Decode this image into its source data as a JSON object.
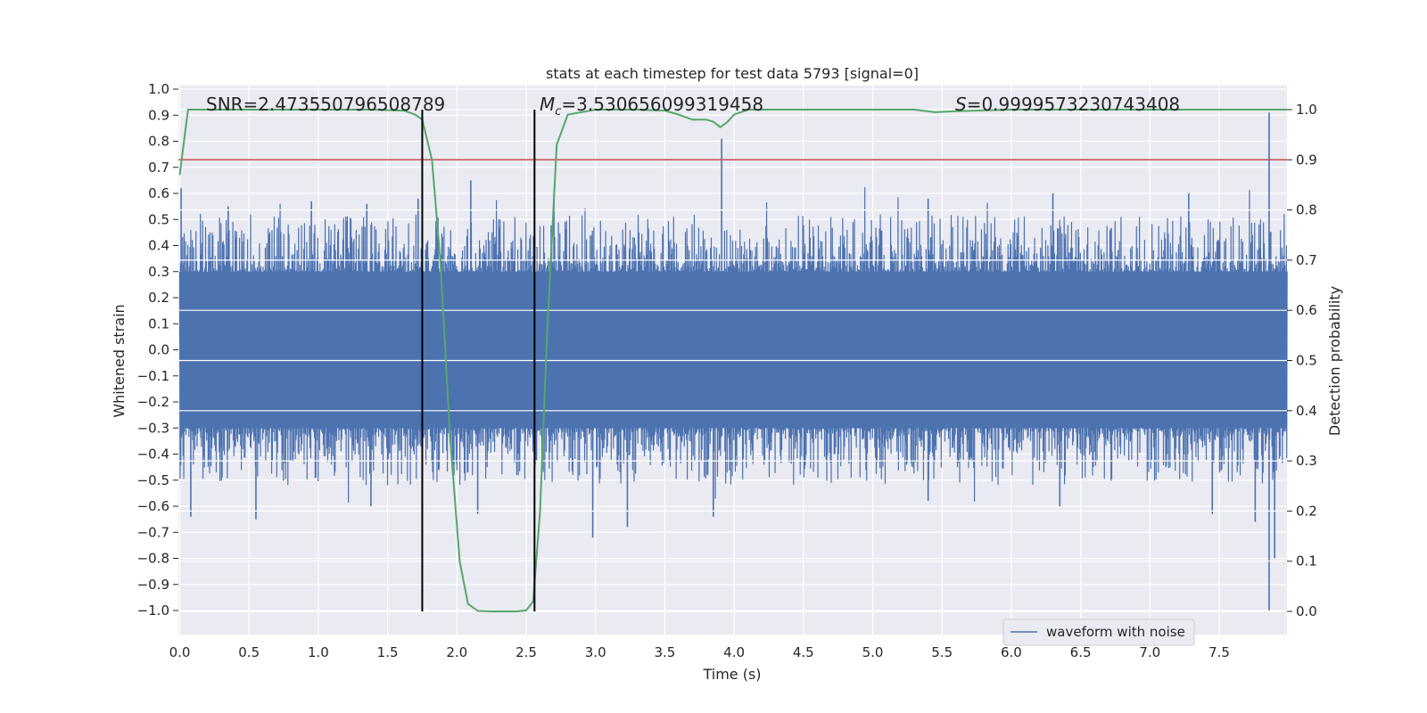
{
  "chart_data": {
    "type": "line",
    "title": "stats at each timestep for test data 5793 [signal=0]",
    "xlabel": "Time (s)",
    "ylabel": "Whitened strain",
    "y2label": "Detection probability",
    "xlim": [
      0.0,
      8.0
    ],
    "ylim": [
      -1.09,
      1.02
    ],
    "y2lim": [
      -0.046,
      1.05
    ],
    "xticks": [
      "0.0",
      "0.5",
      "1.0",
      "1.5",
      "2.0",
      "2.5",
      "3.0",
      "3.5",
      "4.0",
      "4.5",
      "5.0",
      "5.5",
      "6.0",
      "6.5",
      "7.0",
      "7.5"
    ],
    "yticks": [
      "1.0",
      "0.9",
      "0.8",
      "0.7",
      "0.6",
      "0.5",
      "0.4",
      "0.3",
      "0.2",
      "0.1",
      "0.0",
      "−0.1",
      "−0.2",
      "−0.3",
      "−0.4",
      "−0.5",
      "−0.6",
      "−0.7",
      "−0.8",
      "−0.9",
      "−1.0"
    ],
    "y2ticks": [
      "1.0",
      "0.9",
      "0.8",
      "0.7",
      "0.6",
      "0.5",
      "0.4",
      "0.3",
      "0.2",
      "0.1",
      "0.0"
    ],
    "grid": true,
    "legend": {
      "placement": "bottom-right",
      "entries": [
        "waveform with noise"
      ]
    },
    "annotations": {
      "snr": "SNR=2.473550796508789",
      "mc_symbol": "M",
      "mc_sub": "c",
      "mc_value": "=3.530656099319458",
      "s_symbol": "S",
      "s_value": "=0.9999573230743408"
    },
    "waveform": {
      "name": "waveform with noise",
      "color": "#4c72b0",
      "duration": 7.99,
      "core_amplitude": 0.3,
      "spikes": [
        {
          "t": 0.01,
          "v": 0.62
        },
        {
          "t": 0.08,
          "v": -0.64
        },
        {
          "t": 0.35,
          "v": 0.55
        },
        {
          "t": 0.55,
          "v": -0.65
        },
        {
          "t": 0.95,
          "v": 0.57
        },
        {
          "t": 1.35,
          "v": 0.56
        },
        {
          "t": 1.38,
          "v": -0.6
        },
        {
          "t": 1.72,
          "v": 0.58
        },
        {
          "t": 2.1,
          "v": 0.65
        },
        {
          "t": 2.15,
          "v": -0.63
        },
        {
          "t": 2.7,
          "v": 0.6
        },
        {
          "t": 2.98,
          "v": -0.72
        },
        {
          "t": 3.23,
          "v": -0.68
        },
        {
          "t": 3.91,
          "v": 0.81
        },
        {
          "t": 3.85,
          "v": -0.64
        },
        {
          "t": 5.4,
          "v": 0.58
        },
        {
          "t": 5.4,
          "v": -0.58
        },
        {
          "t": 6.3,
          "v": 0.6
        },
        {
          "t": 6.35,
          "v": -0.6
        },
        {
          "t": 7.28,
          "v": 0.6
        },
        {
          "t": 7.45,
          "v": -0.63
        },
        {
          "t": 7.76,
          "v": -0.66
        },
        {
          "t": 7.86,
          "v": 0.91
        },
        {
          "t": 7.86,
          "v": -1.0
        },
        {
          "t": 7.9,
          "v": -0.8
        }
      ]
    },
    "threshold": {
      "value": 0.9,
      "color": "#c44e52"
    },
    "detection_probability": {
      "color": "#55a868",
      "x": [
        0.0,
        0.06,
        0.15,
        0.5,
        1.0,
        1.4,
        1.62,
        1.7,
        1.75,
        1.82,
        1.88,
        1.95,
        2.02,
        2.08,
        2.15,
        2.25,
        2.35,
        2.43,
        2.5,
        2.55,
        2.6,
        2.65,
        2.72,
        2.8,
        3.0,
        3.3,
        3.5,
        3.6,
        3.7,
        3.8,
        3.85,
        3.9,
        3.95,
        4.0,
        4.1,
        4.5,
        5.0,
        5.3,
        5.45,
        5.6,
        6.0,
        6.5,
        7.0,
        7.5,
        7.99
      ],
      "y": [
        0.87,
        1.0,
        1.0,
        1.0,
        1.0,
        1.0,
        0.998,
        0.99,
        0.98,
        0.9,
        0.7,
        0.35,
        0.1,
        0.015,
        0.001,
        0.0,
        0.0,
        0.0,
        0.002,
        0.02,
        0.2,
        0.55,
        0.93,
        0.99,
        1.0,
        1.0,
        0.998,
        0.99,
        0.98,
        0.98,
        0.976,
        0.965,
        0.975,
        0.99,
        1.0,
        1.0,
        1.0,
        1.0,
        0.995,
        0.997,
        1.0,
        1.0,
        1.0,
        1.0,
        1.0
      ]
    },
    "vertical_markers": [
      1.75,
      2.56
    ],
    "marker_color": "#000000"
  }
}
